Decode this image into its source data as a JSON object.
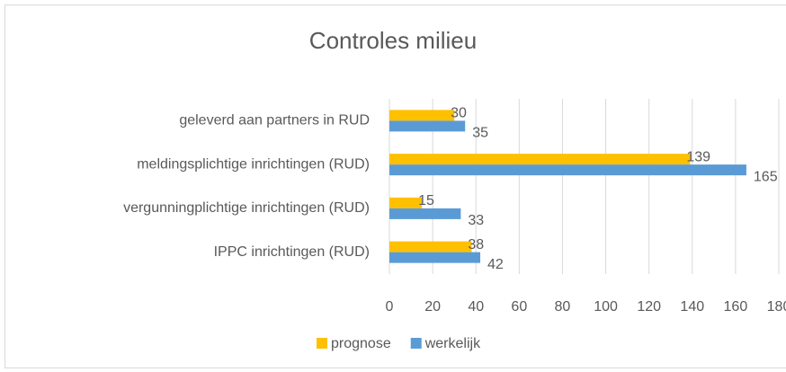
{
  "chart_data": {
    "type": "hbar",
    "title": "Controles milieu",
    "categories": [
      "geleverd aan partners in RUD",
      "meldingsplichtige inrichtingen (RUD)",
      "vergunningplichtige inrichtingen (RUD)",
      "IPPC inrichtingen (RUD)"
    ],
    "series": [
      {
        "name": "prognose",
        "color": "#ffc000",
        "values": [
          30,
          139,
          15,
          38
        ]
      },
      {
        "name": "werkelijk",
        "color": "#5b9bd5",
        "values": [
          35,
          165,
          33,
          42
        ]
      }
    ],
    "xlim": [
      0,
      180
    ],
    "xticks": [
      0,
      20,
      40,
      60,
      80,
      100,
      120,
      140,
      160,
      180
    ],
    "grid": true,
    "legend": "bottom"
  }
}
